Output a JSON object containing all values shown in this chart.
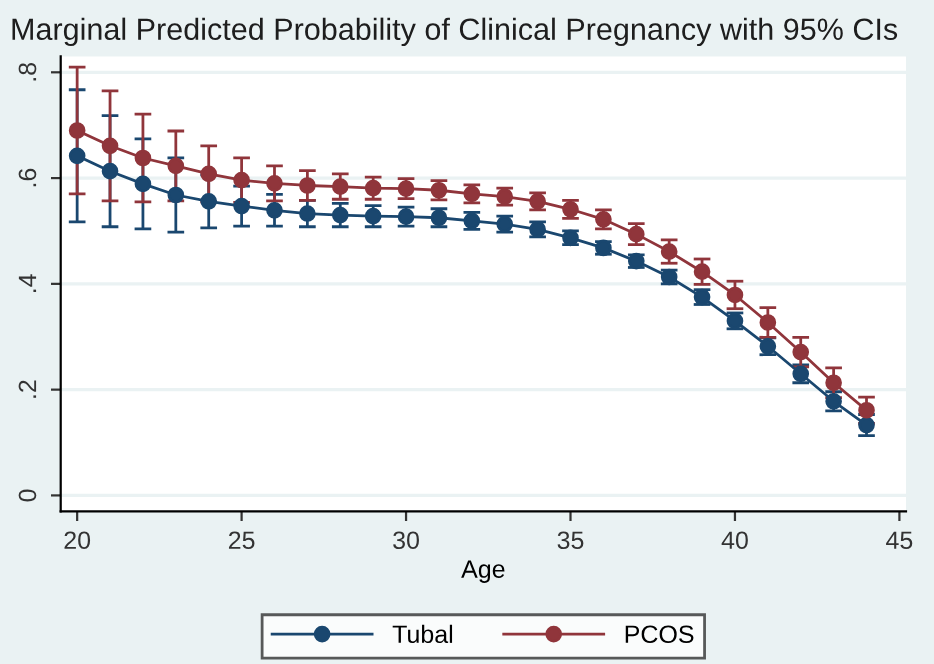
{
  "chart_data": {
    "type": "line",
    "title": "Marginal Predicted Probability of Clinical Pregnancy with 95% CIs",
    "xlabel": "Age",
    "x": [
      20,
      21,
      22,
      23,
      24,
      25,
      26,
      27,
      28,
      29,
      30,
      31,
      32,
      33,
      34,
      35,
      36,
      37,
      38,
      39,
      40,
      41,
      42,
      43,
      44
    ],
    "series": [
      {
        "name": "Tubal",
        "color": "#1a476f",
        "values": [
          0.642,
          0.613,
          0.589,
          0.568,
          0.556,
          0.547,
          0.539,
          0.533,
          0.53,
          0.528,
          0.527,
          0.525,
          0.519,
          0.513,
          0.503,
          0.487,
          0.468,
          0.443,
          0.413,
          0.375,
          0.33,
          0.282,
          0.23,
          0.178,
          0.133
        ],
        "errors": [
          0.125,
          0.105,
          0.085,
          0.07,
          0.05,
          0.038,
          0.03,
          0.025,
          0.022,
          0.02,
          0.018,
          0.017,
          0.016,
          0.015,
          0.014,
          0.013,
          0.012,
          0.012,
          0.013,
          0.014,
          0.015,
          0.016,
          0.017,
          0.018,
          0.02
        ]
      },
      {
        "name": "PCOS",
        "color": "#90353b",
        "values": [
          0.69,
          0.661,
          0.638,
          0.623,
          0.608,
          0.596,
          0.59,
          0.586,
          0.584,
          0.581,
          0.58,
          0.577,
          0.57,
          0.565,
          0.556,
          0.541,
          0.522,
          0.494,
          0.461,
          0.423,
          0.379,
          0.327,
          0.271,
          0.213,
          0.161
        ],
        "errors": [
          0.12,
          0.104,
          0.083,
          0.066,
          0.053,
          0.042,
          0.033,
          0.028,
          0.024,
          0.021,
          0.019,
          0.018,
          0.017,
          0.016,
          0.016,
          0.017,
          0.018,
          0.02,
          0.022,
          0.024,
          0.026,
          0.028,
          0.028,
          0.028,
          0.025
        ]
      }
    ],
    "xlim": [
      19.5,
      45.2
    ],
    "ylim": [
      -0.03,
      0.83
    ],
    "xticks": [
      20,
      25,
      30,
      35,
      40,
      45
    ],
    "yticks": [
      0,
      {
        "value": 0.2,
        "label": ".2"
      },
      {
        "value": 0.4,
        "label": ".4"
      },
      {
        "value": 0.6,
        "label": ".6"
      },
      {
        "value": 0.8,
        "label": ".8"
      }
    ],
    "grid": "y",
    "legend": "bottom",
    "marker": "circle",
    "line_style": "solid"
  }
}
